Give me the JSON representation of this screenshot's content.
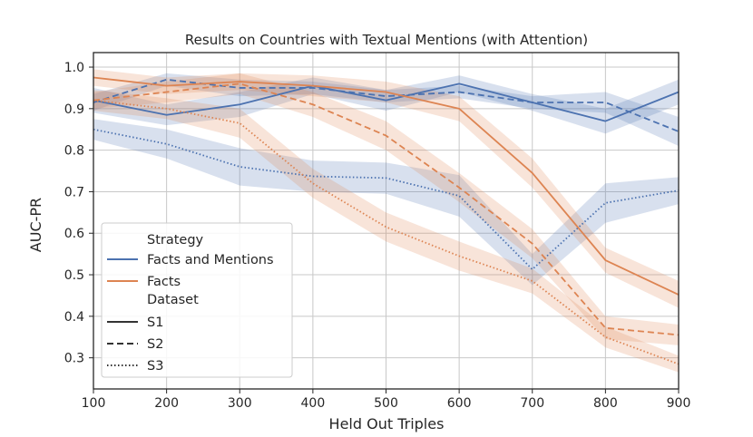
{
  "chart_data": {
    "type": "line",
    "title": "Results on Countries with Textual Mentions (with Attention)",
    "xlabel": "Held Out Triples",
    "ylabel": "AUC-PR",
    "xlim": [
      100,
      900
    ],
    "ylim": [
      0.225,
      1.035
    ],
    "x": [
      100,
      200,
      300,
      400,
      500,
      600,
      700,
      800,
      900
    ],
    "xticks": [
      "100",
      "200",
      "300",
      "400",
      "500",
      "600",
      "700",
      "800",
      "900"
    ],
    "yticks": [
      "0.3",
      "0.4",
      "0.5",
      "0.6",
      "0.7",
      "0.8",
      "0.9",
      "1.0"
    ],
    "grid": true,
    "legend_position": "lower-left",
    "legend": {
      "hue_title": "Strategy",
      "hue_entries": [
        "Facts and Mentions",
        "Facts"
      ],
      "style_title": "Dataset",
      "style_entries": [
        "S1",
        "S2",
        "S3"
      ]
    },
    "colors": {
      "Facts and Mentions": "#4c72b0",
      "Facts": "#dd8452"
    },
    "series": [
      {
        "strategy": "Facts and Mentions",
        "dataset": "S1",
        "values": [
          0.92,
          0.885,
          0.91,
          0.955,
          0.92,
          0.96,
          0.915,
          0.87,
          0.94
        ],
        "lower": [
          0.89,
          0.86,
          0.88,
          0.935,
          0.895,
          0.94,
          0.895,
          0.84,
          0.91
        ],
        "upper": [
          0.95,
          0.91,
          0.94,
          0.975,
          0.945,
          0.98,
          0.935,
          0.9,
          0.97
        ]
      },
      {
        "strategy": "Facts and Mentions",
        "dataset": "S2",
        "values": [
          0.915,
          0.97,
          0.95,
          0.95,
          0.93,
          0.94,
          0.915,
          0.915,
          0.845
        ],
        "lower": [
          0.895,
          0.955,
          0.93,
          0.935,
          0.915,
          0.925,
          0.9,
          0.89,
          0.81
        ],
        "upper": [
          0.935,
          0.985,
          0.97,
          0.965,
          0.945,
          0.955,
          0.93,
          0.94,
          0.88
        ]
      },
      {
        "strategy": "Facts and Mentions",
        "dataset": "S3",
        "values": [
          0.85,
          0.815,
          0.76,
          0.737,
          0.733,
          0.69,
          0.513,
          0.673,
          0.703
        ],
        "lower": [
          0.825,
          0.78,
          0.715,
          0.7,
          0.695,
          0.64,
          0.475,
          0.625,
          0.67
        ],
        "upper": [
          0.875,
          0.85,
          0.805,
          0.775,
          0.77,
          0.74,
          0.55,
          0.72,
          0.735
        ]
      },
      {
        "strategy": "Facts",
        "dataset": "S1",
        "values": [
          0.975,
          0.955,
          0.965,
          0.955,
          0.94,
          0.9,
          0.745,
          0.535,
          0.452
        ],
        "lower": [
          0.955,
          0.935,
          0.945,
          0.93,
          0.915,
          0.87,
          0.71,
          0.505,
          0.42
        ],
        "upper": [
          0.995,
          0.975,
          0.985,
          0.98,
          0.965,
          0.93,
          0.78,
          0.565,
          0.485
        ]
      },
      {
        "strategy": "Facts",
        "dataset": "S2",
        "values": [
          0.92,
          0.94,
          0.96,
          0.91,
          0.835,
          0.71,
          0.575,
          0.372,
          0.355
        ],
        "lower": [
          0.9,
          0.915,
          0.935,
          0.88,
          0.8,
          0.675,
          0.54,
          0.345,
          0.33
        ],
        "upper": [
          0.94,
          0.965,
          0.985,
          0.94,
          0.87,
          0.745,
          0.61,
          0.4,
          0.38
        ]
      },
      {
        "strategy": "Facts",
        "dataset": "S3",
        "values": [
          0.92,
          0.9,
          0.865,
          0.72,
          0.615,
          0.545,
          0.485,
          0.35,
          0.285
        ],
        "lower": [
          0.895,
          0.875,
          0.83,
          0.685,
          0.58,
          0.51,
          0.455,
          0.325,
          0.265
        ],
        "upper": [
          0.945,
          0.925,
          0.9,
          0.755,
          0.65,
          0.58,
          0.515,
          0.375,
          0.305
        ]
      }
    ]
  }
}
